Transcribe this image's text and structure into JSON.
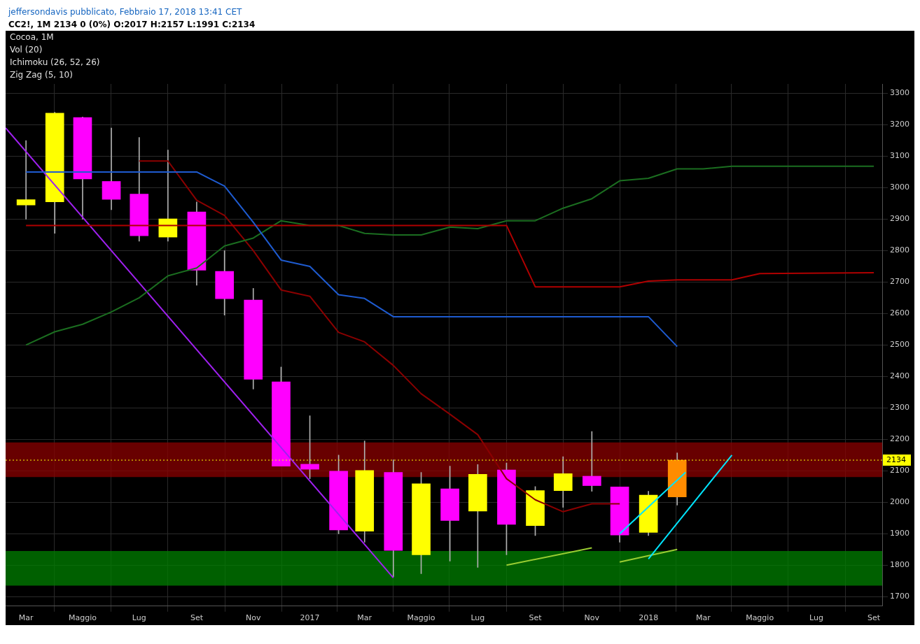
{
  "chart_data": {
    "type": "candlestick",
    "title": "Cocoa, 1M",
    "subtitle": "CC2!, 1M 2134 0 (0%) O:2017 H:2157 L:1991 C:2134",
    "annotations": [
      "jeffersondavis pubblicato, Febbraio 17, 2018 13:41 CET",
      "Vol (20)",
      "Ichimoku (26, 52, 26)",
      "Zig Zag (5, 10)"
    ],
    "x": [
      "2016-03",
      "2016-04",
      "2016-05",
      "2016-06",
      "2016-07",
      "2016-08",
      "2016-09",
      "2016-10",
      "2016-11",
      "2016-12",
      "2017-01",
      "2017-02",
      "2017-03",
      "2017-04",
      "2017-05",
      "2017-06",
      "2017-07",
      "2017-08",
      "2017-09",
      "2017-10",
      "2017-11",
      "2017-12",
      "2018-01",
      "2018-02"
    ],
    "ohlc": [
      [
        2945,
        3150,
        2900,
        2962
      ],
      [
        2955,
        3240,
        2855,
        3237
      ],
      [
        3223,
        3225,
        2900,
        3028
      ],
      [
        3020,
        3190,
        2930,
        2963
      ],
      [
        2980,
        3160,
        2830,
        2847
      ],
      [
        2843,
        3120,
        2830,
        2901
      ],
      [
        2923,
        2955,
        2690,
        2738
      ],
      [
        2734,
        2800,
        2595,
        2647
      ],
      [
        2643,
        2680,
        2360,
        2391
      ],
      [
        2383,
        2430,
        2115,
        2115
      ],
      [
        2121,
        2275,
        2075,
        2105
      ],
      [
        2099,
        2150,
        1900,
        1912
      ],
      [
        1908,
        2195,
        1873,
        2101
      ],
      [
        2095,
        2135,
        1763,
        1847
      ],
      [
        1833,
        2095,
        1773,
        2059
      ],
      [
        2043,
        2115,
        1813,
        1942
      ],
      [
        1972,
        2120,
        1793,
        2089
      ],
      [
        2103,
        2125,
        1833,
        1930
      ],
      [
        1926,
        2050,
        1894,
        2037
      ],
      [
        2037,
        2145,
        1984,
        2091
      ],
      [
        2083,
        2225,
        2035,
        2053
      ],
      [
        2049,
        2049,
        1873,
        1896
      ],
      [
        1904,
        2035,
        1894,
        2023
      ],
      [
        2017,
        2157,
        1991,
        2134
      ]
    ],
    "colors": [
      "#ffff00",
      "#ffff00",
      "#ff00ff",
      "#ff00ff",
      "#ff00ff",
      "#ffff00",
      "#ff00ff",
      "#ff00ff",
      "#ff00ff",
      "#ff00ff",
      "#ff00ff",
      "#ff00ff",
      "#ffff00",
      "#ff00ff",
      "#ffff00",
      "#ff00ff",
      "#ffff00",
      "#ff00ff",
      "#ffff00",
      "#ffff00",
      "#ff00ff",
      "#ff00ff",
      "#ffff00",
      "#ff8c00"
    ],
    "series": [
      {
        "type": "line",
        "color": "#1e5bd0",
        "x": [
          "2016-03",
          "2016-09",
          "2016-10",
          "2016-11",
          "2016-12",
          "2017-01",
          "2017-02",
          "2017-03",
          "2017-04",
          "2018-01",
          "2018-02"
        ],
        "values": [
          3050,
          3050,
          3005,
          2890,
          2770,
          2750,
          2660,
          2648,
          2590,
          2590,
          2495
        ]
      },
      {
        "type": "line",
        "color": "#b00000",
        "x": [
          "2016-03",
          "2017-08",
          "2017-09",
          "2017-12",
          "2018-01",
          "2018-02",
          "2018-04",
          "2018-05",
          "2018-09"
        ],
        "values": [
          2880,
          2880,
          2685,
          2685,
          2703,
          2707,
          2707,
          2727,
          2730
        ]
      },
      {
        "type": "line",
        "color": "#1b6e20",
        "x": [
          "2016-03",
          "2016-04",
          "2016-05",
          "2016-06",
          "2016-07",
          "2016-08",
          "2016-09",
          "2016-10",
          "2016-11",
          "2016-12",
          "2017-01",
          "2017-02",
          "2017-03",
          "2017-04",
          "2017-05",
          "2017-06",
          "2017-07",
          "2017-08",
          "2017-09",
          "2017-10",
          "2017-11",
          "2017-12",
          "2018-01",
          "2018-02",
          "2018-03",
          "2018-04",
          "2018-09"
        ],
        "values": [
          2500,
          2542,
          2566,
          2605,
          2650,
          2720,
          2745,
          2815,
          2840,
          2895,
          2880,
          2880,
          2855,
          2850,
          2850,
          2875,
          2870,
          2895,
          2895,
          2935,
          2965,
          3022,
          3030,
          3060,
          3060,
          3068,
          3068
        ]
      },
      {
        "type": "line",
        "color": "#8b0000",
        "x": [
          "2016-07",
          "2016-08",
          "2016-09",
          "2016-10",
          "2016-11",
          "2016-12",
          "2017-01",
          "2017-02",
          "2017-03",
          "2017-04",
          "2017-05",
          "2017-06",
          "2017-07",
          "2017-08",
          "2017-09",
          "2017-10",
          "2017-11",
          "2017-12"
        ],
        "values": [
          3085,
          3085,
          2960,
          2912,
          2800,
          2675,
          2655,
          2540,
          2510,
          2435,
          2345,
          2280,
          2215,
          2075,
          2008,
          1970,
          1995,
          1995
        ]
      },
      {
        "type": "line",
        "color": "#a020f0",
        "x": [
          "2016-02-08",
          "2017-04"
        ],
        "values": [
          3190,
          1760
        ]
      },
      {
        "type": "line",
        "color": "#00e5ff",
        "x": [
          "2017-12",
          "2018-02-10"
        ],
        "values": [
          1900,
          2095
        ]
      },
      {
        "type": "line",
        "color": "#00e5ff",
        "x": [
          "2018-01",
          "2018-04"
        ],
        "values": [
          1820,
          2150
        ]
      },
      {
        "type": "line",
        "color": "#9acd32",
        "x": [
          "2017-08",
          "2017-11"
        ],
        "values": [
          1800,
          1855
        ]
      },
      {
        "type": "line",
        "color": "#9acd32",
        "x": [
          "2017-12",
          "2018-02"
        ],
        "values": [
          1810,
          1850
        ]
      }
    ],
    "bands": [
      {
        "axis": "y",
        "from": 2080,
        "to": 2190,
        "color": "#8b0000"
      },
      {
        "axis": "y",
        "from": 1735,
        "to": 1845,
        "color": "#008000"
      }
    ],
    "ref_lines": [
      {
        "axis": "y",
        "value": 2134,
        "label": "2134",
        "color": "#ffff00",
        "line_style": "dotted"
      }
    ],
    "marker": "none",
    "grid": true,
    "legend": false,
    "xlim": [
      "2016-02-08",
      "2018-09-10"
    ],
    "ylim": [
      1670,
      3330
    ],
    "xticks": [
      {
        "value": "2016-03",
        "label": "Mar"
      },
      {
        "value": "2016-05",
        "label": "Maggio"
      },
      {
        "value": "2016-07",
        "label": "Lug"
      },
      {
        "value": "2016-09",
        "label": "Set"
      },
      {
        "value": "2016-11",
        "label": "Nov"
      },
      {
        "value": "2017-01",
        "label": "2017"
      },
      {
        "value": "2017-03",
        "label": "Mar"
      },
      {
        "value": "2017-05",
        "label": "Maggio"
      },
      {
        "value": "2017-07",
        "label": "Lug"
      },
      {
        "value": "2017-09",
        "label": "Set"
      },
      {
        "value": "2017-11",
        "label": "Nov"
      },
      {
        "value": "2018-01",
        "label": "2018"
      },
      {
        "value": "2018-03",
        "label": "Mar"
      },
      {
        "value": "2018-05",
        "label": "Maggio"
      },
      {
        "value": "2018-07",
        "label": "Lug"
      },
      {
        "value": "2018-09",
        "label": "Set"
      }
    ],
    "yticks": [
      1700,
      1800,
      1900,
      2000,
      2100,
      2200,
      2300,
      2400,
      2500,
      2600,
      2700,
      2800,
      2900,
      3000,
      3100,
      3200,
      3300
    ]
  }
}
